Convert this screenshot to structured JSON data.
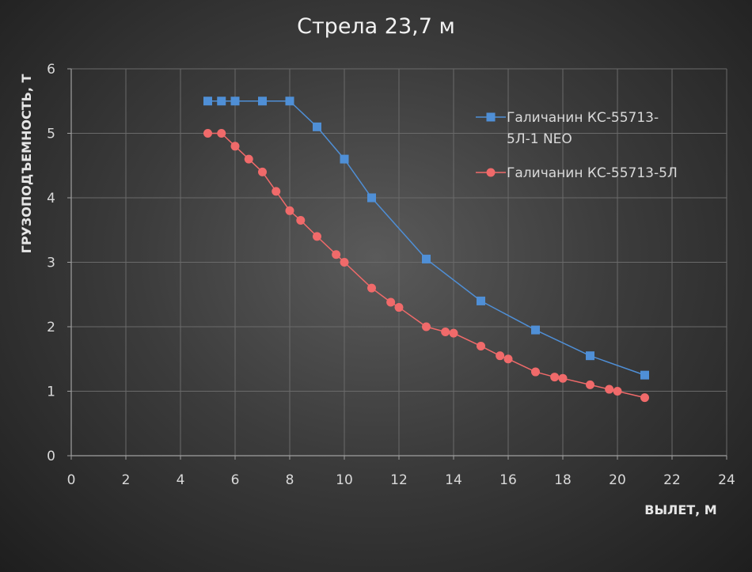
{
  "chart_data": {
    "type": "line",
    "title": "Стрела  23,7 м",
    "xlabel": "ВЫЛЕТ, М",
    "ylabel": "ГРУЗОПОДЪЕМНОСТЬ, Т",
    "xlim": [
      0,
      24
    ],
    "ylim": [
      0,
      6
    ],
    "x_ticks": [
      "0",
      "2",
      "4",
      "6",
      "8",
      "10",
      "12",
      "14",
      "16",
      "18",
      "20",
      "22",
      "24"
    ],
    "y_ticks": [
      "0",
      "1",
      "2",
      "3",
      "4",
      "5",
      "6"
    ],
    "grid": true,
    "legend_position": "right",
    "series": [
      {
        "name": "Галичанин   КС-55713-5Л-1 NEO",
        "legend_lines": [
          "Галичанин   КС-55713-",
          "5Л-1 NEO"
        ],
        "color": "#4f8fd6",
        "marker": "square",
        "points": [
          [
            5,
            5.5
          ],
          [
            5.5,
            5.5
          ],
          [
            6,
            5.5
          ],
          [
            7,
            5.5
          ],
          [
            8,
            5.5
          ],
          [
            9,
            5.1
          ],
          [
            10,
            4.6
          ],
          [
            11,
            4.0
          ],
          [
            13,
            3.05
          ],
          [
            15,
            2.4
          ],
          [
            17,
            1.95
          ],
          [
            19,
            1.55
          ],
          [
            21,
            1.25
          ]
        ]
      },
      {
        "name": "Галичанин КС-55713-5Л",
        "legend_lines": [
          "Галичанин КС-55713-5Л"
        ],
        "color": "#f06a6a",
        "marker": "circle",
        "points": [
          [
            5,
            5.0
          ],
          [
            5.5,
            5.0
          ],
          [
            6,
            4.8
          ],
          [
            6.5,
            4.6
          ],
          [
            7,
            4.4
          ],
          [
            7.5,
            4.1
          ],
          [
            8,
            3.8
          ],
          [
            8.4,
            3.65
          ],
          [
            9,
            3.4
          ],
          [
            9.7,
            3.12
          ],
          [
            10,
            3.0
          ],
          [
            11,
            2.6
          ],
          [
            11.7,
            2.38
          ],
          [
            12,
            2.3
          ],
          [
            13,
            2.0
          ],
          [
            13.7,
            1.92
          ],
          [
            14,
            1.9
          ],
          [
            15,
            1.7
          ],
          [
            15.7,
            1.55
          ],
          [
            16,
            1.5
          ],
          [
            17,
            1.3
          ],
          [
            17.7,
            1.22
          ],
          [
            18,
            1.2
          ],
          [
            19,
            1.1
          ],
          [
            19.7,
            1.03
          ],
          [
            20,
            1.0
          ],
          [
            21,
            0.9
          ]
        ]
      }
    ]
  }
}
